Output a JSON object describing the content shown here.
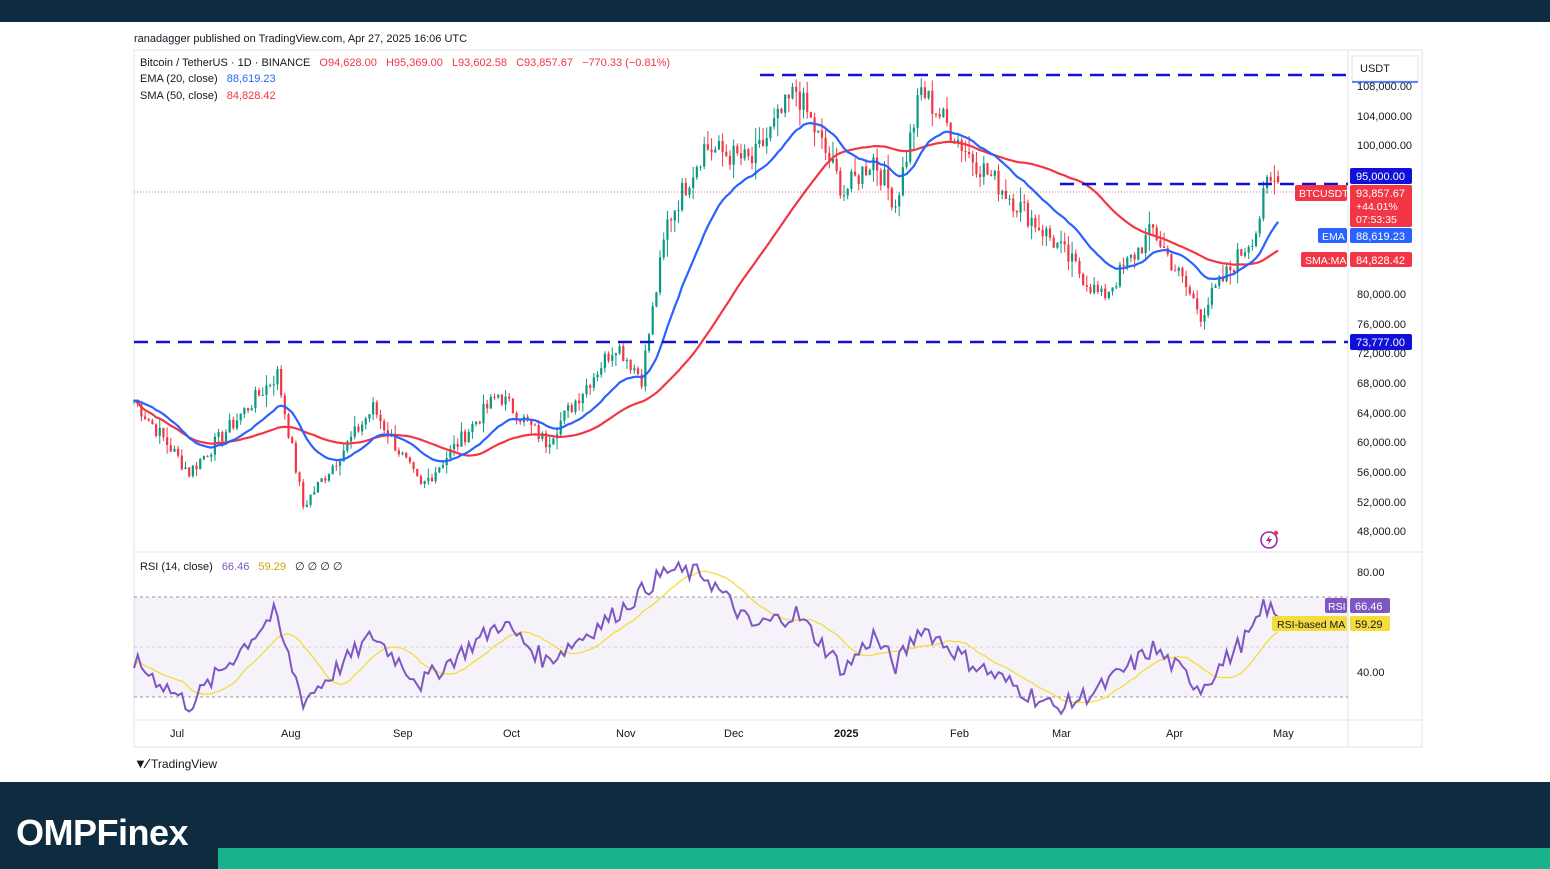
{
  "header": {
    "publish_line": "ranadagger published on TradingView.com, Apr 27, 2025 16:06 UTC"
  },
  "legend": {
    "symbol": "Bitcoin / TetherUS · 1D · BINANCE",
    "open": "O94,628.00",
    "high": "H95,369.00",
    "low": "L93,602.58",
    "close": "C93,857.67",
    "change": "−770.33 (−0.81%)",
    "ema_label": "EMA (20, close)",
    "ema_value": "88,619.23",
    "sma_label": "SMA (50, close)",
    "sma_value": "84,828.42",
    "rsi_label": "RSI (14, close)",
    "rsi_value": "66.46",
    "rsi_ma_value": "59.29",
    "rsi_extra": "∅ ∅ ∅ ∅"
  },
  "price_axis": {
    "currency": "USDT",
    "ticks": [
      "108,000.00",
      "104,000.00",
      "100,000.00",
      "80,000.00",
      "76,000.00",
      "72,000.00",
      "68,000.00",
      "64,000.00",
      "60,000.00",
      "56,000.00",
      "52,000.00",
      "48,000.00"
    ]
  },
  "price_tags": {
    "resistance": "95,000.00",
    "support": "73,777.00",
    "symbol_tag": "BTCUSDT",
    "last_price": "93,857.67",
    "change_pct": "+44.01%",
    "countdown": "07:53:35",
    "ema_tag": "EMA",
    "ema_value": "88,619.23",
    "sma_tag": "SMA:MA",
    "sma_value": "84,828.42"
  },
  "rsi_axis": {
    "ticks": [
      "80.00",
      "40.00"
    ],
    "rsi_tag": "RSI",
    "rsi_value": "66.46",
    "rsi_ma_tag": "RSI-based MA",
    "rsi_ma_value": "59.29"
  },
  "time_axis": {
    "labels": [
      "Jul",
      "Aug",
      "Sep",
      "Oct",
      "Nov",
      "Dec",
      "2025",
      "Feb",
      "Mar",
      "Apr",
      "May"
    ]
  },
  "footer": {
    "tv_brand": "TradingView",
    "site_brand": "OMPFinex"
  },
  "colors": {
    "ema": "#2962ff",
    "sma": "#f23645",
    "rsi": "#7e57c2",
    "rsi_ma": "#f5dc3c",
    "level": "#1010d8",
    "up": "#089981",
    "down": "#f23645"
  },
  "chart_data": [
    {
      "type": "candlestick",
      "title": "Bitcoin / TetherUS · 1D · BINANCE",
      "ylim": [
        45500,
        110500
      ],
      "x_range": [
        "2024-06-20",
        "2025-05-16"
      ],
      "key_points_close": [
        [
          "2024-06-20",
          65000
        ],
        [
          "2024-07-05",
          55500
        ],
        [
          "2024-07-29",
          68500
        ],
        [
          "2024-08-05",
          51000
        ],
        [
          "2024-08-24",
          64000
        ],
        [
          "2024-09-06",
          53500
        ],
        [
          "2024-09-27",
          65800
        ],
        [
          "2024-10-10",
          59500
        ],
        [
          "2024-10-29",
          72500
        ],
        [
          "2024-11-05",
          68000
        ],
        [
          "2024-11-12",
          88500
        ],
        [
          "2024-11-22",
          98500
        ],
        [
          "2024-12-05",
          96500
        ],
        [
          "2024-12-17",
          106000
        ],
        [
          "2024-12-30",
          92500
        ],
        [
          "2025-01-07",
          97000
        ],
        [
          "2025-01-13",
          91000
        ],
        [
          "2025-01-20",
          106000
        ],
        [
          "2025-02-02",
          97500
        ],
        [
          "2025-02-25",
          86000
        ],
        [
          "2025-03-10",
          78500
        ],
        [
          "2025-03-24",
          87500
        ],
        [
          "2025-04-06",
          76500
        ],
        [
          "2025-04-21",
          87500
        ],
        [
          "2025-04-24",
          93500
        ],
        [
          "2025-04-27",
          93857.67
        ]
      ],
      "ema20_last": 88619.23,
      "sma50_last": 84828.42,
      "horizontal_levels": [
        109000,
        95000,
        73777
      ],
      "last": {
        "open": 94628.0,
        "high": 95369.0,
        "low": 93602.58,
        "close": 93857.67
      }
    },
    {
      "type": "line",
      "title": "RSI (14, close)",
      "ylim": [
        20,
        95
      ],
      "bands": [
        30,
        50,
        70
      ],
      "key_points_rsi": [
        [
          "2024-06-20",
          46
        ],
        [
          "2024-07-05",
          26
        ],
        [
          "2024-07-28",
          68
        ],
        [
          "2024-08-05",
          28
        ],
        [
          "2024-08-24",
          58
        ],
        [
          "2024-09-06",
          36
        ],
        [
          "2024-09-28",
          64
        ],
        [
          "2024-10-10",
          46
        ],
        [
          "2024-10-29",
          68
        ],
        [
          "2024-11-12",
          88
        ],
        [
          "2024-11-22",
          86
        ],
        [
          "2024-12-05",
          62
        ],
        [
          "2024-12-17",
          68
        ],
        [
          "2024-12-30",
          42
        ],
        [
          "2025-01-07",
          58
        ],
        [
          "2025-01-13",
          44
        ],
        [
          "2025-01-20",
          62
        ],
        [
          "2025-02-02",
          46
        ],
        [
          "2025-02-26",
          24
        ],
        [
          "2025-03-10",
          34
        ],
        [
          "2025-03-24",
          52
        ],
        [
          "2025-04-06",
          34
        ],
        [
          "2025-04-21",
          62
        ],
        [
          "2025-04-23",
          72
        ],
        [
          "2025-04-27",
          66.46
        ]
      ],
      "rsi_ma_last": 59.29
    }
  ]
}
